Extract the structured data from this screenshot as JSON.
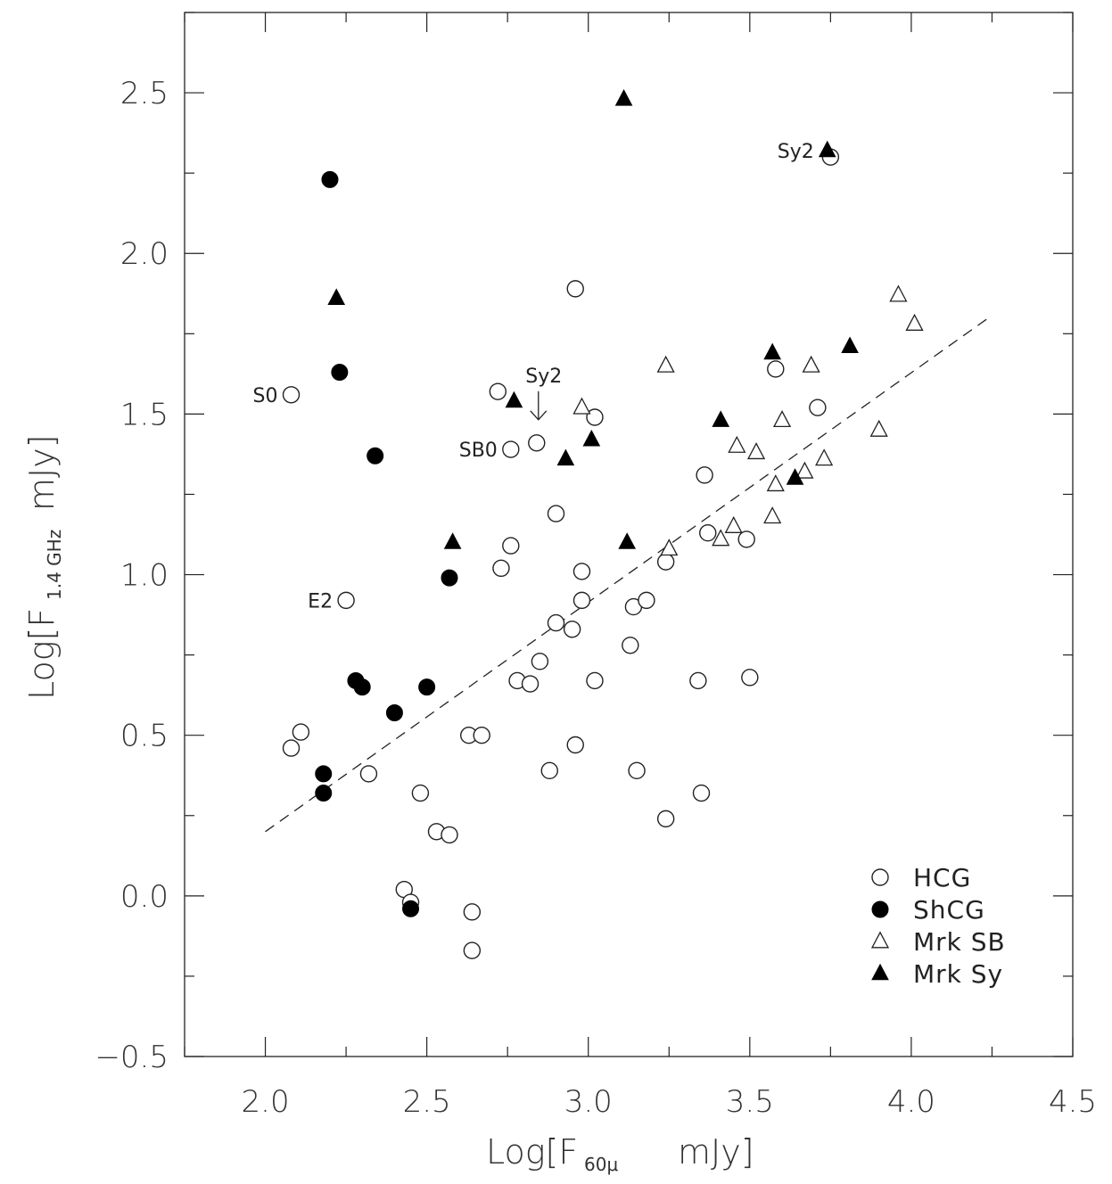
{
  "chart_data": {
    "type": "scatter",
    "xlabel_main": "Log[F",
    "xlabel_sub": "60μ",
    "xlabel_unit": "mJy]",
    "ylabel_main": "Log[F",
    "ylabel_sub": "1.4 GHz",
    "ylabel_unit": "mJy]",
    "xlim": [
      1.75,
      4.5
    ],
    "ylim": [
      -0.5,
      2.75
    ],
    "xticks": [
      "2.0",
      "2.5",
      "3.0",
      "3.5",
      "4.0",
      "4.5"
    ],
    "yticks": [
      "−0.5",
      "0.0",
      "0.5",
      "1.0",
      "1.5",
      "2.0",
      "2.5"
    ],
    "legend_position": "bottom-right",
    "fit_line": {
      "x": [
        2.0,
        4.24
      ],
      "y": [
        0.2,
        1.8
      ],
      "style": "dashed"
    },
    "series": [
      {
        "name": "HCG",
        "marker": "open-circle",
        "points": [
          [
            2.08,
            1.56
          ],
          [
            2.25,
            0.92
          ],
          [
            2.08,
            0.46
          ],
          [
            2.11,
            0.51
          ],
          [
            2.32,
            0.38
          ],
          [
            2.43,
            0.02
          ],
          [
            2.45,
            -0.02
          ],
          [
            2.48,
            0.32
          ],
          [
            2.53,
            0.2
          ],
          [
            2.57,
            0.19
          ],
          [
            2.63,
            0.5
          ],
          [
            2.67,
            0.5
          ],
          [
            2.64,
            -0.05
          ],
          [
            2.64,
            -0.17
          ],
          [
            2.73,
            1.02
          ],
          [
            2.76,
            1.09
          ],
          [
            2.76,
            1.39
          ],
          [
            2.72,
            1.57
          ],
          [
            2.78,
            0.67
          ],
          [
            2.82,
            0.66
          ],
          [
            2.85,
            0.73
          ],
          [
            2.9,
            0.85
          ],
          [
            2.95,
            0.83
          ],
          [
            2.9,
            1.19
          ],
          [
            2.84,
            1.41
          ],
          [
            2.96,
            1.89
          ],
          [
            2.98,
            0.92
          ],
          [
            2.98,
            1.01
          ],
          [
            3.02,
            0.67
          ],
          [
            3.02,
            1.49
          ],
          [
            2.88,
            0.39
          ],
          [
            2.96,
            0.47
          ],
          [
            3.13,
            0.78
          ],
          [
            3.14,
            0.9
          ],
          [
            3.18,
            0.92
          ],
          [
            3.15,
            0.39
          ],
          [
            3.24,
            1.04
          ],
          [
            3.24,
            0.24
          ],
          [
            3.35,
            0.32
          ],
          [
            3.34,
            0.67
          ],
          [
            3.37,
            1.13
          ],
          [
            3.36,
            1.31
          ],
          [
            3.49,
            1.11
          ],
          [
            3.5,
            0.68
          ],
          [
            3.58,
            1.64
          ],
          [
            3.71,
            1.52
          ],
          [
            3.75,
            2.3
          ]
        ]
      },
      {
        "name": "ShCG",
        "marker": "filled-circle",
        "points": [
          [
            2.2,
            2.23
          ],
          [
            2.23,
            1.63
          ],
          [
            2.34,
            1.37
          ],
          [
            2.57,
            0.99
          ],
          [
            2.28,
            0.67
          ],
          [
            2.3,
            0.65
          ],
          [
            2.4,
            0.57
          ],
          [
            2.5,
            0.65
          ],
          [
            2.18,
            0.38
          ],
          [
            2.18,
            0.32
          ],
          [
            2.45,
            -0.04
          ]
        ]
      },
      {
        "name": "Mrk SB",
        "marker": "open-triangle",
        "points": [
          [
            2.98,
            1.52
          ],
          [
            3.24,
            1.65
          ],
          [
            3.25,
            1.08
          ],
          [
            3.41,
            1.11
          ],
          [
            3.45,
            1.15
          ],
          [
            3.46,
            1.4
          ],
          [
            3.52,
            1.38
          ],
          [
            3.57,
            1.18
          ],
          [
            3.58,
            1.28
          ],
          [
            3.6,
            1.48
          ],
          [
            3.67,
            1.32
          ],
          [
            3.69,
            1.65
          ],
          [
            3.73,
            1.36
          ],
          [
            3.9,
            1.45
          ],
          [
            3.96,
            1.87
          ],
          [
            4.01,
            1.78
          ]
        ]
      },
      {
        "name": "Mrk Sy",
        "marker": "filled-triangle",
        "points": [
          [
            2.22,
            1.86
          ],
          [
            2.58,
            1.1
          ],
          [
            2.77,
            1.54
          ],
          [
            2.93,
            1.36
          ],
          [
            3.01,
            1.42
          ],
          [
            3.11,
            2.48
          ],
          [
            3.12,
            1.1
          ],
          [
            3.41,
            1.48
          ],
          [
            3.57,
            1.69
          ],
          [
            3.64,
            1.3
          ],
          [
            3.74,
            2.32
          ],
          [
            3.81,
            1.71
          ]
        ]
      }
    ],
    "annotations": [
      {
        "text": "S0",
        "x": 2.08,
        "y": 1.56,
        "side": "left"
      },
      {
        "text": "E2",
        "x": 2.25,
        "y": 0.92,
        "side": "left"
      },
      {
        "text": "SB0",
        "x": 2.76,
        "y": 1.39,
        "side": "left"
      },
      {
        "text": "Sy2",
        "x": 3.74,
        "y": 2.32,
        "side": "left"
      },
      {
        "text": "Sy2",
        "x": 2.84,
        "y": 1.41,
        "side": "above-arrow"
      }
    ]
  }
}
